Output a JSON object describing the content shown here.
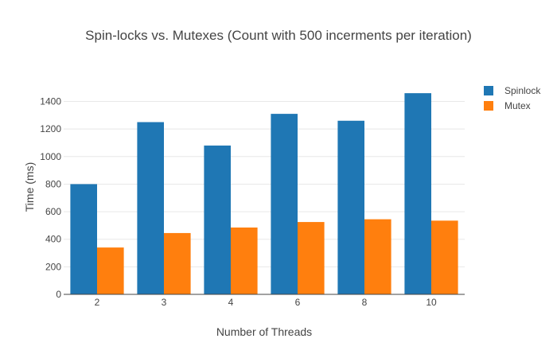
{
  "chart_data": {
    "type": "bar",
    "title": "Spin-locks vs. Mutexes (Count with 500 incerments per iteration)",
    "xlabel": "Number of Threads",
    "ylabel": "Time (ms)",
    "categories": [
      "2",
      "3",
      "4",
      "6",
      "8",
      "10"
    ],
    "ylim": [
      0,
      1530
    ],
    "yticks": [
      0,
      200,
      400,
      600,
      800,
      1000,
      1200,
      1400
    ],
    "grid": true,
    "legend_position": "top-right",
    "series": [
      {
        "name": "Spinlock",
        "color": "#1f77b4",
        "values": [
          800,
          1250,
          1080,
          1310,
          1260,
          1460
        ]
      },
      {
        "name": "Mutex",
        "color": "#ff7f0e",
        "values": [
          340,
          445,
          485,
          525,
          545,
          535
        ]
      }
    ]
  }
}
